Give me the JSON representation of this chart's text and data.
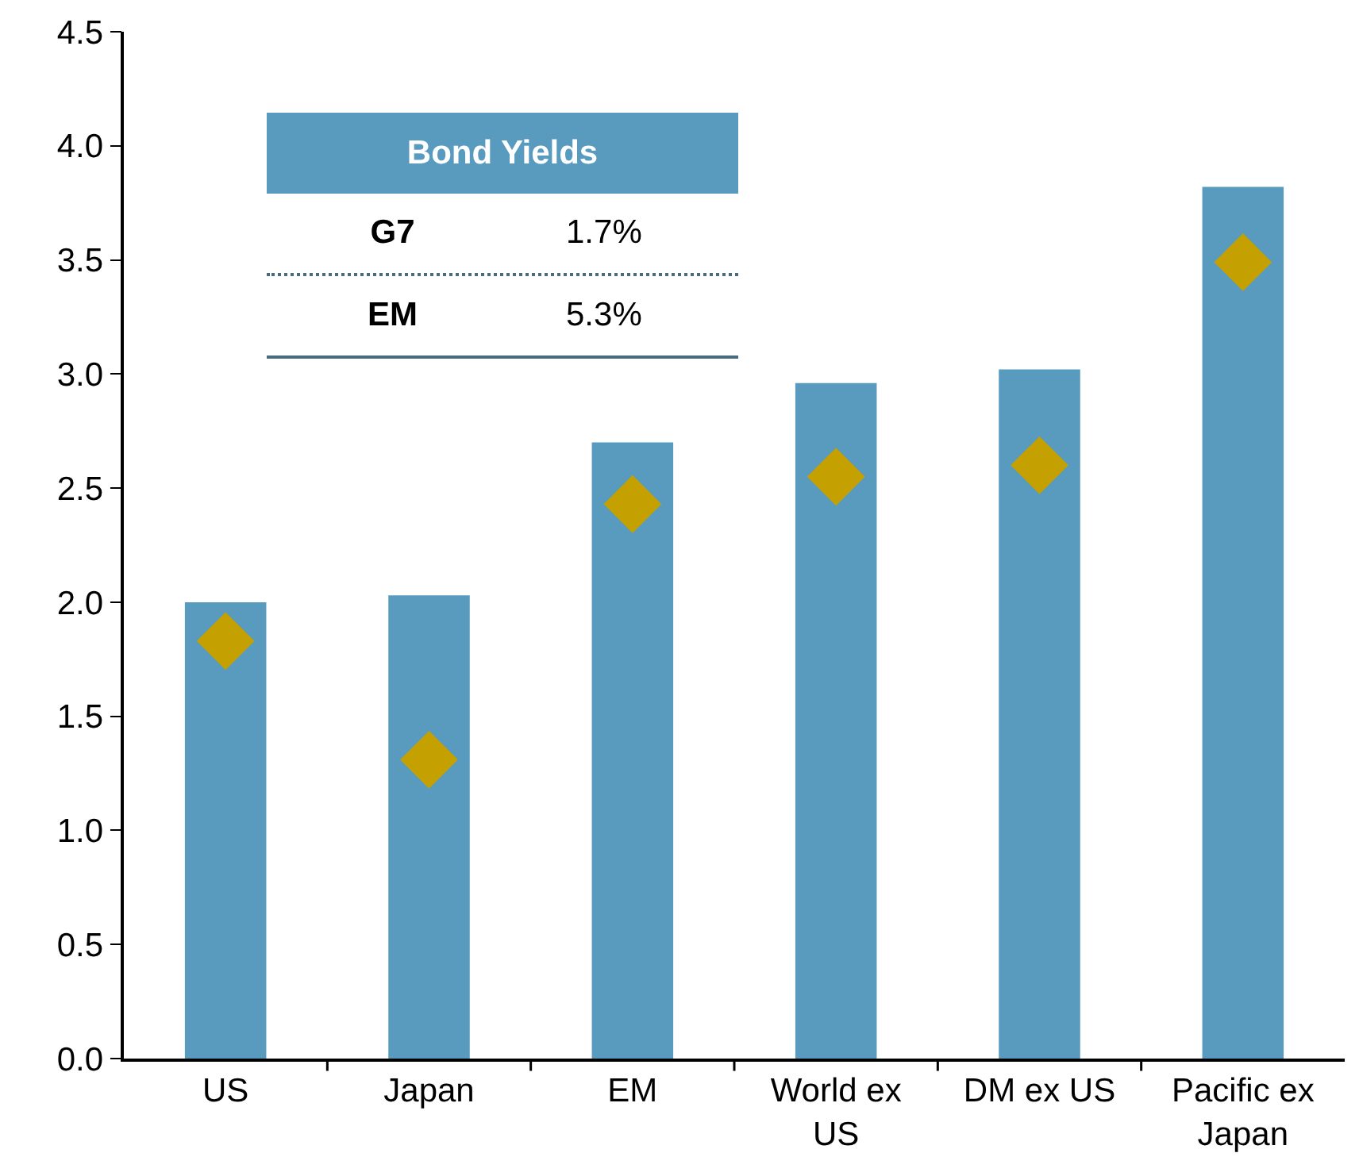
{
  "chart_data": {
    "type": "bar",
    "categories": [
      "US",
      "Japan",
      "EM",
      "World ex US",
      "DM ex US",
      "Pacific ex Japan"
    ],
    "series": [
      {
        "color": "#589bbf",
        "values": [
          2.0,
          2.03,
          2.7,
          2.96,
          3.02,
          3.82
        ]
      },
      {
        "type": "scatter",
        "color": "#c4a000",
        "marker": "diamond",
        "values": [
          1.83,
          1.31,
          2.43,
          2.55,
          2.6,
          3.49
        ]
      }
    ],
    "ylim": [
      0,
      4.5
    ],
    "yticks": [
      {
        "value": 0,
        "label": "0.0"
      },
      0.5,
      {
        "value": 1,
        "label": "1.0"
      },
      1.5,
      {
        "value": 2,
        "label": "2.0"
      },
      2.5,
      {
        "value": 3,
        "label": "3.0"
      },
      3.5,
      {
        "value": 4,
        "label": "4.0"
      },
      4.5
    ],
    "grid": false,
    "annotations": [
      "Bond Yields",
      "G7",
      "1.7%",
      "EM",
      "5.3%"
    ]
  }
}
